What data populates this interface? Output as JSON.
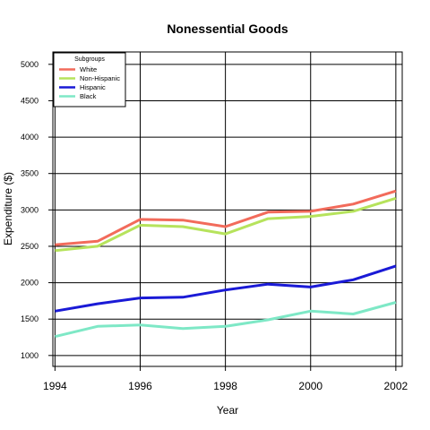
{
  "chart_data": {
    "type": "line",
    "title": "Nonessential Goods",
    "xlabel": "Year",
    "ylabel": "Expenditure ($)",
    "x": [
      1994,
      1995,
      1996,
      1997,
      1998,
      1999,
      2000,
      2001,
      2002
    ],
    "x_ticks": [
      1994,
      1996,
      1998,
      2000,
      2002
    ],
    "y_ticks": [
      1000,
      1500,
      2000,
      2500,
      3000,
      3500,
      4000,
      4500,
      5000
    ],
    "xlim": [
      1993.95,
      2002.15
    ],
    "ylim": [
      850,
      5170
    ],
    "grid": true,
    "legend": {
      "title": "Subgroups",
      "position": "top-left"
    },
    "series": [
      {
        "name": "White",
        "color": "#f26b5b",
        "values": [
          2520,
          2570,
          2870,
          2860,
          2770,
          2970,
          2980,
          3080,
          3260
        ]
      },
      {
        "name": "Non-Hispanic",
        "color": "#b6e35c",
        "values": [
          2440,
          2500,
          2790,
          2770,
          2670,
          2880,
          2910,
          2980,
          3160
        ]
      },
      {
        "name": "Hispanic",
        "color": "#1a1ad6",
        "values": [
          1610,
          1710,
          1790,
          1800,
          1900,
          1980,
          1940,
          2040,
          2230
        ]
      },
      {
        "name": "Black",
        "color": "#7ee8c6",
        "values": [
          1260,
          1400,
          1420,
          1370,
          1400,
          1490,
          1610,
          1570,
          1730
        ]
      }
    ]
  }
}
